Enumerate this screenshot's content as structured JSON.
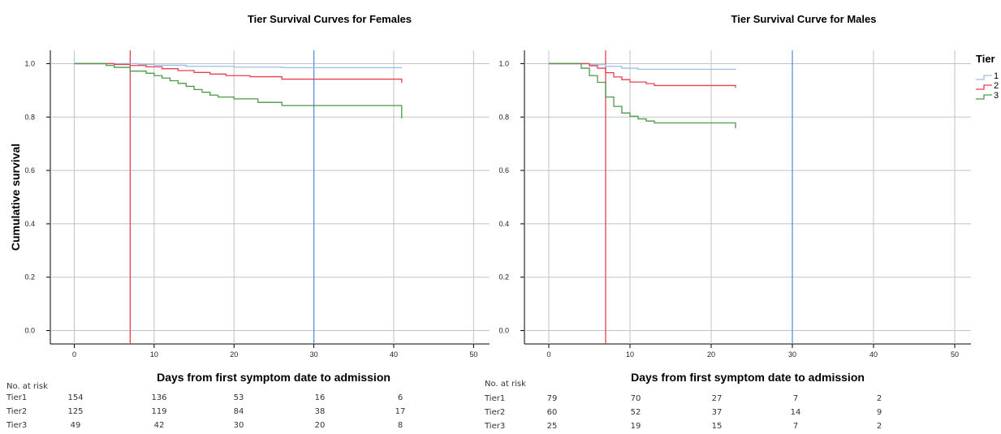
{
  "chart_data": [
    {
      "type": "line",
      "title": "Tier Survival Curves for Females",
      "xlabel": "Days from first symptom date to admission",
      "ylabel": "Cumulative survival",
      "xlim": [
        -3,
        52
      ],
      "ylim": [
        -0.05,
        1.05
      ],
      "x_ticks": [
        "0",
        "10",
        "20",
        "30",
        "40",
        "50"
      ],
      "y_ticks": [
        "0.0",
        "0.2",
        "0.4",
        "0.6",
        "0.8",
        "1.0"
      ],
      "grid": true,
      "reference_lines": [
        {
          "x": 7,
          "color": "#e8404f"
        },
        {
          "x": 30,
          "color": "#5b8fdf"
        }
      ],
      "series": [
        {
          "name": "1",
          "color": "#9dbde9",
          "x": [
            0,
            6,
            8,
            10,
            14,
            20,
            26,
            41,
            41
          ],
          "y": [
            1.0,
            1.0,
            0.997,
            0.994,
            0.99,
            0.987,
            0.985,
            0.985,
            0.983
          ]
        },
        {
          "name": "2",
          "color": "#e8404f",
          "x": [
            0,
            5,
            7,
            9,
            11,
            13,
            15,
            17,
            19,
            22,
            26,
            41,
            41
          ],
          "y": [
            1.0,
            0.997,
            0.993,
            0.988,
            0.981,
            0.974,
            0.967,
            0.961,
            0.955,
            0.951,
            0.942,
            0.942,
            0.928
          ]
        },
        {
          "name": "3",
          "color": "#4a9a4a",
          "x": [
            0,
            3.5,
            4,
            5,
            7,
            9,
            10,
            11,
            12,
            13,
            14,
            15,
            16,
            17,
            18,
            20,
            23,
            26,
            41,
            41
          ],
          "y": [
            1.0,
            1.0,
            0.993,
            0.986,
            0.972,
            0.964,
            0.955,
            0.946,
            0.936,
            0.926,
            0.915,
            0.903,
            0.893,
            0.882,
            0.875,
            0.868,
            0.855,
            0.843,
            0.843,
            0.795
          ]
        }
      ],
      "risk_table": {
        "header": "No. at risk",
        "rows": [
          {
            "label": "Tier1",
            "values": [
              "154",
              "136",
              "53",
              "16",
              "6"
            ]
          },
          {
            "label": "Tier2",
            "values": [
              "125",
              "119",
              "84",
              "38",
              "17"
            ]
          },
          {
            "label": "Tier3",
            "values": [
              "49",
              "42",
              "30",
              "20",
              "8"
            ]
          }
        ]
      }
    },
    {
      "type": "line",
      "title": "Tier Survival Curve for Males",
      "xlabel": "Days from first symptom date to admission",
      "ylabel": "",
      "xlim": [
        -3,
        52
      ],
      "ylim": [
        -0.05,
        1.05
      ],
      "x_ticks": [
        "0",
        "10",
        "20",
        "30",
        "40",
        "50"
      ],
      "y_ticks": [
        "0.0",
        "0.2",
        "0.4",
        "0.6",
        "0.8",
        "1.0"
      ],
      "grid": true,
      "reference_lines": [
        {
          "x": 7,
          "color": "#e8404f"
        },
        {
          "x": 30,
          "color": "#5b8fdf"
        }
      ],
      "series": [
        {
          "name": "1",
          "color": "#9dbde9",
          "x": [
            0,
            5,
            7,
            9,
            11,
            23,
            23
          ],
          "y": [
            1.0,
            0.996,
            0.99,
            0.983,
            0.979,
            0.979,
            0.976
          ]
        },
        {
          "name": "2",
          "color": "#e8404f",
          "x": [
            0,
            5,
            6,
            7,
            8,
            9,
            10,
            12,
            13,
            23,
            23
          ],
          "y": [
            1.0,
            0.992,
            0.983,
            0.966,
            0.95,
            0.94,
            0.931,
            0.925,
            0.918,
            0.918,
            0.91
          ]
        },
        {
          "name": "3",
          "color": "#4a9a4a",
          "x": [
            0,
            4,
            5,
            6,
            7,
            8,
            9,
            10,
            11,
            12,
            13,
            23,
            23
          ],
          "y": [
            1.0,
            0.983,
            0.955,
            0.93,
            0.875,
            0.84,
            0.815,
            0.803,
            0.793,
            0.785,
            0.778,
            0.778,
            0.758
          ]
        }
      ],
      "risk_table": {
        "header": "No. at risk",
        "rows": [
          {
            "label": "Tier1",
            "values": [
              "79",
              "70",
              "27",
              "7",
              "2"
            ]
          },
          {
            "label": "Tier2",
            "values": [
              "60",
              "52",
              "37",
              "14",
              "9"
            ]
          },
          {
            "label": "Tier3",
            "values": [
              "25",
              "19",
              "15",
              "7",
              "2"
            ]
          }
        ]
      }
    }
  ],
  "legend": {
    "title": "Tier",
    "placement": "right",
    "items": [
      {
        "label": "1",
        "color": "#9dbde9"
      },
      {
        "label": "2",
        "color": "#e8404f"
      },
      {
        "label": "3",
        "color": "#4a9a4a"
      }
    ]
  }
}
